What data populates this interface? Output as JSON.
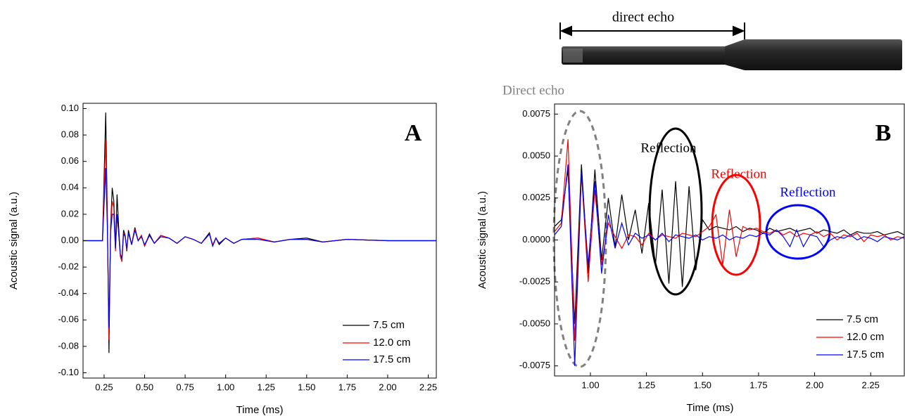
{
  "image": {
    "caption": "direct echo"
  },
  "chart_data": [
    {
      "type": "line",
      "label": "A",
      "xlabel": "Time (ms)",
      "ylabel": "Acoustic signal (a.u.)",
      "xlim": [
        0.12,
        2.3
      ],
      "ylim": [
        -0.104,
        0.104
      ],
      "xticks": [
        0.25,
        {
          "value": 0.5,
          "label": "0.50"
        },
        0.75,
        {
          "value": 1,
          "label": "1.00"
        },
        1.25,
        {
          "value": 1.5,
          "label": "1.50"
        },
        1.75,
        {
          "value": 2,
          "label": "2.00"
        },
        2.25
      ],
      "yticks": [
        {
          "value": 0.1,
          "label": "0.10"
        },
        0.08,
        0.06,
        0.04,
        0.02,
        {
          "value": 0,
          "label": "0.00"
        },
        -0.02,
        -0.04,
        -0.06,
        -0.08,
        {
          "value": -0.1,
          "label": "-0.10"
        }
      ],
      "legend": "lower right",
      "grid": false,
      "x": [
        0.12,
        0.24,
        0.26,
        0.27,
        0.28,
        0.29,
        0.3,
        0.31,
        0.32,
        0.33,
        0.34,
        0.35,
        0.36,
        0.37,
        0.38,
        0.39,
        0.4,
        0.42,
        0.44,
        0.46,
        0.48,
        0.5,
        0.53,
        0.56,
        0.6,
        0.65,
        0.7,
        0.75,
        0.8,
        0.85,
        0.9,
        0.92,
        0.94,
        0.96,
        1.0,
        1.05,
        1.1,
        1.2,
        1.3,
        1.4,
        1.5,
        1.6,
        1.75,
        2.0,
        2.3
      ],
      "series": [
        {
          "name": "7.5 cm",
          "color": "#000000",
          "values": [
            0,
            0,
            0.097,
            0.02,
            -0.085,
            0.01,
            0.04,
            0.03,
            -0.005,
            0.035,
            0.01,
            -0.01,
            -0.014,
            0.008,
            0.004,
            -0.008,
            0.008,
            -0.003,
            0.01,
            0.0,
            0.004,
            -0.004,
            0.005,
            -0.002,
            0.004,
            0.002,
            -0.002,
            0.003,
            0.001,
            -0.002,
            0.006,
            -0.004,
            0.002,
            -0.003,
            0.002,
            -0.002,
            0.001,
            0.002,
            -0.001,
            0.001,
            0.002,
            -0.001,
            0.001,
            0,
            0
          ]
        },
        {
          "name": "12.0 cm",
          "color": "#ff0000",
          "values": [
            0,
            0,
            0.076,
            0.015,
            -0.075,
            0.008,
            0.03,
            0.025,
            -0.008,
            0.02,
            0.006,
            -0.012,
            -0.016,
            0.006,
            0.003,
            -0.007,
            0.006,
            -0.003,
            0.009,
            0,
            0.004,
            -0.004,
            0.004,
            -0.002,
            0.004,
            0.002,
            -0.002,
            0.003,
            0.001,
            -0.002,
            0.005,
            -0.003,
            0.002,
            -0.002,
            0.002,
            -0.002,
            0.001,
            0.002,
            -0.001,
            0.001,
            0.001,
            -0.001,
            0.001,
            0,
            0
          ]
        },
        {
          "name": "17.5 cm",
          "color": "#0000ff",
          "values": [
            0,
            0,
            0.055,
            0.01,
            -0.066,
            0.006,
            0.02,
            0.02,
            -0.006,
            0.02,
            0.005,
            -0.01,
            -0.013,
            0.005,
            0.003,
            -0.006,
            0.006,
            -0.003,
            0.008,
            0,
            0.003,
            -0.003,
            0.004,
            -0.002,
            0.003,
            0.002,
            -0.002,
            0.003,
            0.001,
            -0.002,
            0.005,
            -0.004,
            0.002,
            -0.002,
            0.002,
            -0.002,
            0.001,
            0.001,
            -0.001,
            0.001,
            0.001,
            -0.001,
            0.001,
            0,
            0
          ]
        }
      ]
    },
    {
      "type": "line",
      "label": "B",
      "xlabel": "Time (ms)",
      "ylabel": "Acoustic signal (a.u.)",
      "xlim": [
        0.84,
        2.4
      ],
      "ylim": [
        -0.0081,
        0.0081
      ],
      "xticks": [
        {
          "value": 1,
          "label": "1.00"
        },
        1.25,
        {
          "value": 1.5,
          "label": "1.50"
        },
        1.75,
        {
          "value": 2,
          "label": "2.00"
        },
        2.25
      ],
      "yticks": [
        0.0075,
        {
          "value": 0.005,
          "label": "0.0050"
        },
        0.0025,
        {
          "value": 0,
          "label": "0.0000"
        },
        -0.0025,
        {
          "value": -0.005,
          "label": "-0.0050"
        },
        -0.0075
      ],
      "legend": "lower right",
      "grid": false,
      "annotations": [
        {
          "text": "Direct echo",
          "color": "#808080"
        },
        {
          "text": "Reflection",
          "color": "#000000"
        },
        {
          "text": "Reflection",
          "color": "#ff0000"
        },
        {
          "text": "Reflection",
          "color": "#0000ff"
        }
      ],
      "x": [
        0.84,
        0.87,
        0.9,
        0.93,
        0.96,
        0.99,
        1.02,
        1.05,
        1.08,
        1.11,
        1.14,
        1.17,
        1.2,
        1.23,
        1.26,
        1.29,
        1.32,
        1.35,
        1.38,
        1.41,
        1.44,
        1.47,
        1.5,
        1.53,
        1.56,
        1.59,
        1.62,
        1.65,
        1.68,
        1.71,
        1.74,
        1.77,
        1.8,
        1.83,
        1.86,
        1.89,
        1.92,
        1.95,
        1.98,
        2.01,
        2.04,
        2.07,
        2.1,
        2.13,
        2.16,
        2.19,
        2.22,
        2.25,
        2.28,
        2.31,
        2.34,
        2.37,
        2.4
      ],
      "series": [
        {
          "name": "7.5 cm",
          "color": "#000000",
          "values": [
            0.0008,
            0.0012,
            0.0042,
            -0.005,
            0.0045,
            -0.002,
            0.0042,
            -0.0012,
            0.0025,
            -0.0004,
            0.0027,
            0.0,
            0.0018,
            -0.0008,
            0.0022,
            -0.0015,
            0.003,
            -0.0026,
            0.0035,
            -0.0028,
            0.0032,
            -0.0018,
            0.0012,
            0.0006,
            0.0008,
            0.0007,
            0.0006,
            0.0008,
            0.0005,
            0.0007,
            0.0006,
            0.0004,
            0.0007,
            0.0005,
            0.0006,
            0.0007,
            0.0005,
            0.0006,
            0.0007,
            0.0004,
            0.0006,
            0.0005,
            0.0004,
            0.0006,
            0.0003,
            0.0005,
            0.0004,
            0.0004,
            0.0005,
            0.0003,
            0.0004,
            0.0005,
            0.0003
          ]
        },
        {
          "name": "12.0 cm",
          "color": "#ff0000",
          "values": [
            0.0005,
            0.001,
            0.006,
            -0.006,
            0.004,
            -0.0025,
            0.003,
            -0.0015,
            0.001,
            0.0002,
            -0.0005,
            0.0003,
            0.0002,
            -0.0003,
            0.0004,
            0.0,
            0.0003,
            0.0002,
            0.0001,
            0.0004,
            0.0003,
            0.0002,
            0.0005,
            0.0008,
            0.0015,
            -0.0015,
            0.0018,
            -0.001,
            0.0008,
            0.0006,
            0.0007,
            0.0005,
            0.0004,
            0.0006,
            0.0003,
            0.0005,
            0.0002,
            0.0004,
            0.0003,
            0.0005,
            0.0002,
            0.0004,
            0.0,
            0.0003,
            0.0002,
            0.0004,
            -0.0001,
            0.0003,
            0.0002,
            0.0003,
            0.0,
            0.0002,
            0.0001
          ]
        },
        {
          "name": "17.5 cm",
          "color": "#0000ff",
          "values": [
            0.0003,
            0.0008,
            0.0045,
            -0.0075,
            0.004,
            -0.0015,
            0.0035,
            -0.002,
            0.0015,
            -0.0005,
            0.001,
            -0.0003,
            0.0004,
            0.0001,
            0.0003,
            0.0,
            0.0004,
            -0.0001,
            0.0003,
            0.0002,
            0.0001,
            0.0003,
            0.0,
            0.0002,
            0.0001,
            0.0003,
            0.0,
            0.0002,
            0.0001,
            0.0003,
            0.0002,
            0.0004,
            0.0003,
            0.0006,
            0.0002,
            -0.0004,
            0.0006,
            -0.0004,
            0.0003,
            0.0002,
            -0.0004,
            0.0,
            0.0002,
            0.0001,
            0.0003,
            0.0,
            0.0002,
            0.0001,
            -0.0001,
            0.0002,
            0.0001,
            0.0,
            0.0002
          ]
        }
      ]
    }
  ]
}
